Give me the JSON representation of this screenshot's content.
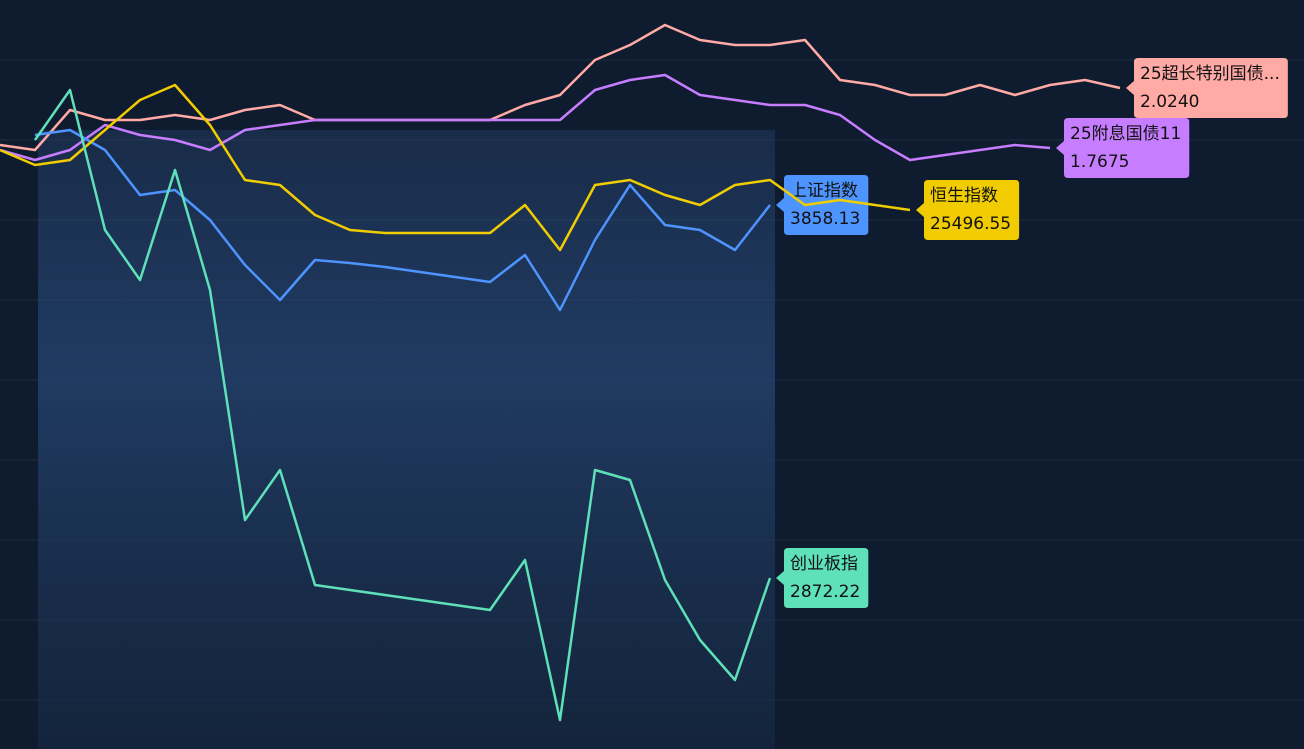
{
  "chart_data": {
    "type": "line",
    "categories": [
      null,
      null,
      null,
      null,
      null,
      null,
      null,
      null,
      null,
      null,
      null,
      null,
      null,
      null,
      null,
      null,
      null,
      null,
      null,
      null,
      null,
      null,
      null,
      null,
      null,
      null,
      null,
      null,
      null,
      null,
      null,
      null,
      null
    ],
    "series": [
      {
        "name": "25超长特别国债...",
        "color": "#ffaaa5",
        "ylim": [
          1.6935,
          2.068
        ],
        "values": [
          1.9955,
          1.993,
          2.013,
          2.008,
          2.008,
          2.0105,
          2.008,
          2.013,
          2.0155,
          2.008,
          2.008,
          2.008,
          2.008,
          2.008,
          2.008,
          2.0155,
          2.0205,
          2.038,
          2.0455,
          2.0555,
          2.048,
          2.0455,
          2.0455,
          2.048,
          2.028,
          2.0255,
          2.0205,
          2.0205,
          2.0255,
          2.0205,
          2.0255,
          2.028,
          2.024
        ],
        "value_labels": [
          null,
          null,
          null,
          null,
          null,
          null,
          null,
          null,
          null,
          null,
          null,
          null,
          null,
          null,
          null,
          null,
          null,
          null,
          null,
          null,
          null,
          null,
          null,
          null,
          null,
          null,
          null,
          null,
          null,
          null,
          null,
          null,
          "2.0240"
        ]
      },
      {
        "name": "25附息国债11",
        "color": "#c77dff",
        "ylim": [
          1.467,
          1.8415
        ],
        "values": [
          1.7665,
          1.7615,
          1.7665,
          1.779,
          1.774,
          1.7715,
          1.7665,
          1.7765,
          1.779,
          1.7815,
          1.7815,
          1.7815,
          1.7815,
          1.7815,
          1.7815,
          1.7815,
          1.7815,
          1.7965,
          1.8015,
          1.804,
          1.794,
          1.7915,
          1.789,
          1.789,
          1.784,
          1.7715,
          1.7615,
          1.764,
          1.7665,
          1.769,
          1.7675,
          null,
          null
        ]
      },
      {
        "name": "上证指数",
        "color": "#4d94ff",
        "ylim": [
          3640.53,
          3940.13
        ],
        "values": [
          null,
          3886.13,
          3888.13,
          3880.13,
          3862.13,
          3864.13,
          3852.13,
          3834.13,
          3820.13,
          3836.13,
          3834.93,
          3833.33,
          3831.33,
          3829.33,
          3827.33,
          3838.13,
          3816.13,
          3844.13,
          3866.13,
          3850.13,
          3848.13,
          3840.13,
          3858.13,
          null,
          null,
          null,
          null,
          null,
          null,
          null,
          null,
          null,
          null
        ]
      },
      {
        "name": "恒生指数",
        "color": "#f0cc00",
        "ylim": [
          24149.05,
          26021.55
        ],
        "values": [
          25646.55,
          25609.05,
          25621.55,
          25696.55,
          25771.55,
          25809.05,
          25709.05,
          25571.55,
          25559.05,
          25484.05,
          25446.55,
          25439.05,
          25439.05,
          25439.05,
          25439.05,
          25509.05,
          25396.55,
          25559.05,
          25571.55,
          25534.05,
          25509.05,
          25559.05,
          25571.55,
          25509.05,
          25521.55,
          25509.05,
          25496.55,
          null,
          null,
          null,
          null,
          null,
          null
        ]
      },
      {
        "name": "创业板指",
        "color": "#5ee0b8",
        "ylim": [
          2735.42,
          3334.62
        ],
        "values": [
          null,
          3222.62,
          3262.62,
          3150.62,
          3110.62,
          3198.62,
          3102.62,
          2918.62,
          2958.62,
          2866.62,
          2862.62,
          2858.62,
          2854.62,
          2850.62,
          2846.62,
          2886.62,
          2758.62,
          2958.62,
          2950.62,
          2870.62,
          2822.62,
          2790.62,
          2872.22,
          null,
          null,
          null,
          null,
          null,
          null,
          null,
          null,
          null,
          null
        ]
      }
    ]
  }
}
